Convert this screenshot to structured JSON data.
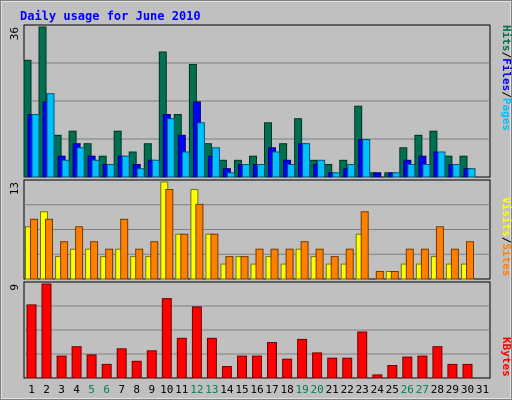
{
  "chart_data": {
    "type": "bar",
    "title": "Daily usage for June 2010",
    "x": [
      "1",
      "2",
      "3",
      "4",
      "5",
      "6",
      "7",
      "8",
      "9",
      "10",
      "11",
      "12",
      "13",
      "14",
      "15",
      "16",
      "17",
      "18",
      "19",
      "20",
      "21",
      "22",
      "23",
      "24",
      "25",
      "26",
      "27",
      "28",
      "29",
      "30",
      "31"
    ],
    "weekend_days": [
      "5",
      "6",
      "12",
      "13",
      "19",
      "20",
      "26",
      "27"
    ],
    "panels": [
      {
        "name": "hits-files-pages",
        "ymax_label": "36",
        "ymax": 36,
        "series": [
          {
            "name": "Hits",
            "color": "#007050",
            "values": [
              28,
              36,
              10,
              11,
              8,
              5,
              11,
              6,
              8,
              30,
              15,
              27,
              8,
              4,
              4,
              5,
              13,
              8,
              14,
              4,
              3,
              4,
              17,
              1,
              1,
              7,
              10,
              11,
              5,
              5,
              0
            ]
          },
          {
            "name": "Files",
            "color": "#0000ff",
            "values": [
              15,
              18,
              5,
              8,
              5,
              3,
              5,
              3,
              4,
              15,
              10,
              18,
              5,
              2,
              3,
              3,
              7,
              4,
              8,
              3,
              1,
              2,
              9,
              1,
              1,
              4,
              5,
              6,
              3,
              2,
              0
            ]
          },
          {
            "name": "Pages",
            "color": "#00c0ff",
            "values": [
              15,
              20,
              4,
              7,
              4,
              3,
              5,
              2,
              4,
              14,
              6,
              13,
              7,
              1,
              3,
              3,
              6,
              3,
              8,
              4,
              1,
              3,
              9,
              0,
              1,
              3,
              3,
              6,
              3,
              2,
              0
            ]
          }
        ]
      },
      {
        "name": "visits-sites",
        "ymax_label": "13",
        "ymax": 13,
        "series": [
          {
            "name": "Visits",
            "color": "#ffff00",
            "values": [
              7,
              9,
              3,
              4,
              4,
              3,
              4,
              3,
              3,
              13,
              6,
              12,
              6,
              2,
              3,
              2,
              3,
              2,
              4,
              3,
              2,
              2,
              6,
              0,
              1,
              2,
              2,
              3,
              2,
              2,
              0
            ]
          },
          {
            "name": "Sites",
            "color": "#ff8000",
            "values": [
              8,
              8,
              5,
              7,
              5,
              4,
              8,
              4,
              5,
              12,
              6,
              10,
              6,
              3,
              3,
              4,
              4,
              4,
              5,
              4,
              3,
              4,
              9,
              1,
              1,
              4,
              4,
              7,
              4,
              5,
              0
            ]
          }
        ]
      },
      {
        "name": "kbytes",
        "ymax_label": "9",
        "ymax": 9,
        "series": [
          {
            "name": "KBytes",
            "color": "#ff0000",
            "values": [
              7,
              9,
              2.1,
              3,
              2.2,
              1.3,
              2.8,
              1.6,
              2.6,
              7.6,
              3.8,
              6.8,
              3.8,
              1.1,
              2.1,
              2.1,
              3.4,
              1.8,
              3.7,
              2.4,
              1.9,
              1.9,
              4.4,
              0.3,
              1.2,
              2,
              2.1,
              3,
              1.3,
              1.3,
              0
            ]
          }
        ]
      }
    ],
    "right_labels": [
      {
        "text": "Hits",
        "color": "#007050"
      },
      {
        "text": "/",
        "color": "#000000"
      },
      {
        "text": "Files",
        "color": "#0000ff"
      },
      {
        "text": "/",
        "color": "#000000"
      },
      {
        "text": "Pages",
        "color": "#00c0ff"
      }
    ],
    "right_labels_mid": [
      {
        "text": "Visits",
        "color": "#ffff00"
      },
      {
        "text": "/",
        "color": "#000000"
      },
      {
        "text": "Sites",
        "color": "#ff8000"
      }
    ],
    "right_labels_bottom": [
      {
        "text": "KBytes",
        "color": "#ff0000"
      }
    ],
    "colors": {
      "background": "#c0c0c0",
      "title": "#0000ff",
      "weekday_label": "#000000",
      "weekend_label": "#00805c",
      "grid": "#808080"
    }
  }
}
